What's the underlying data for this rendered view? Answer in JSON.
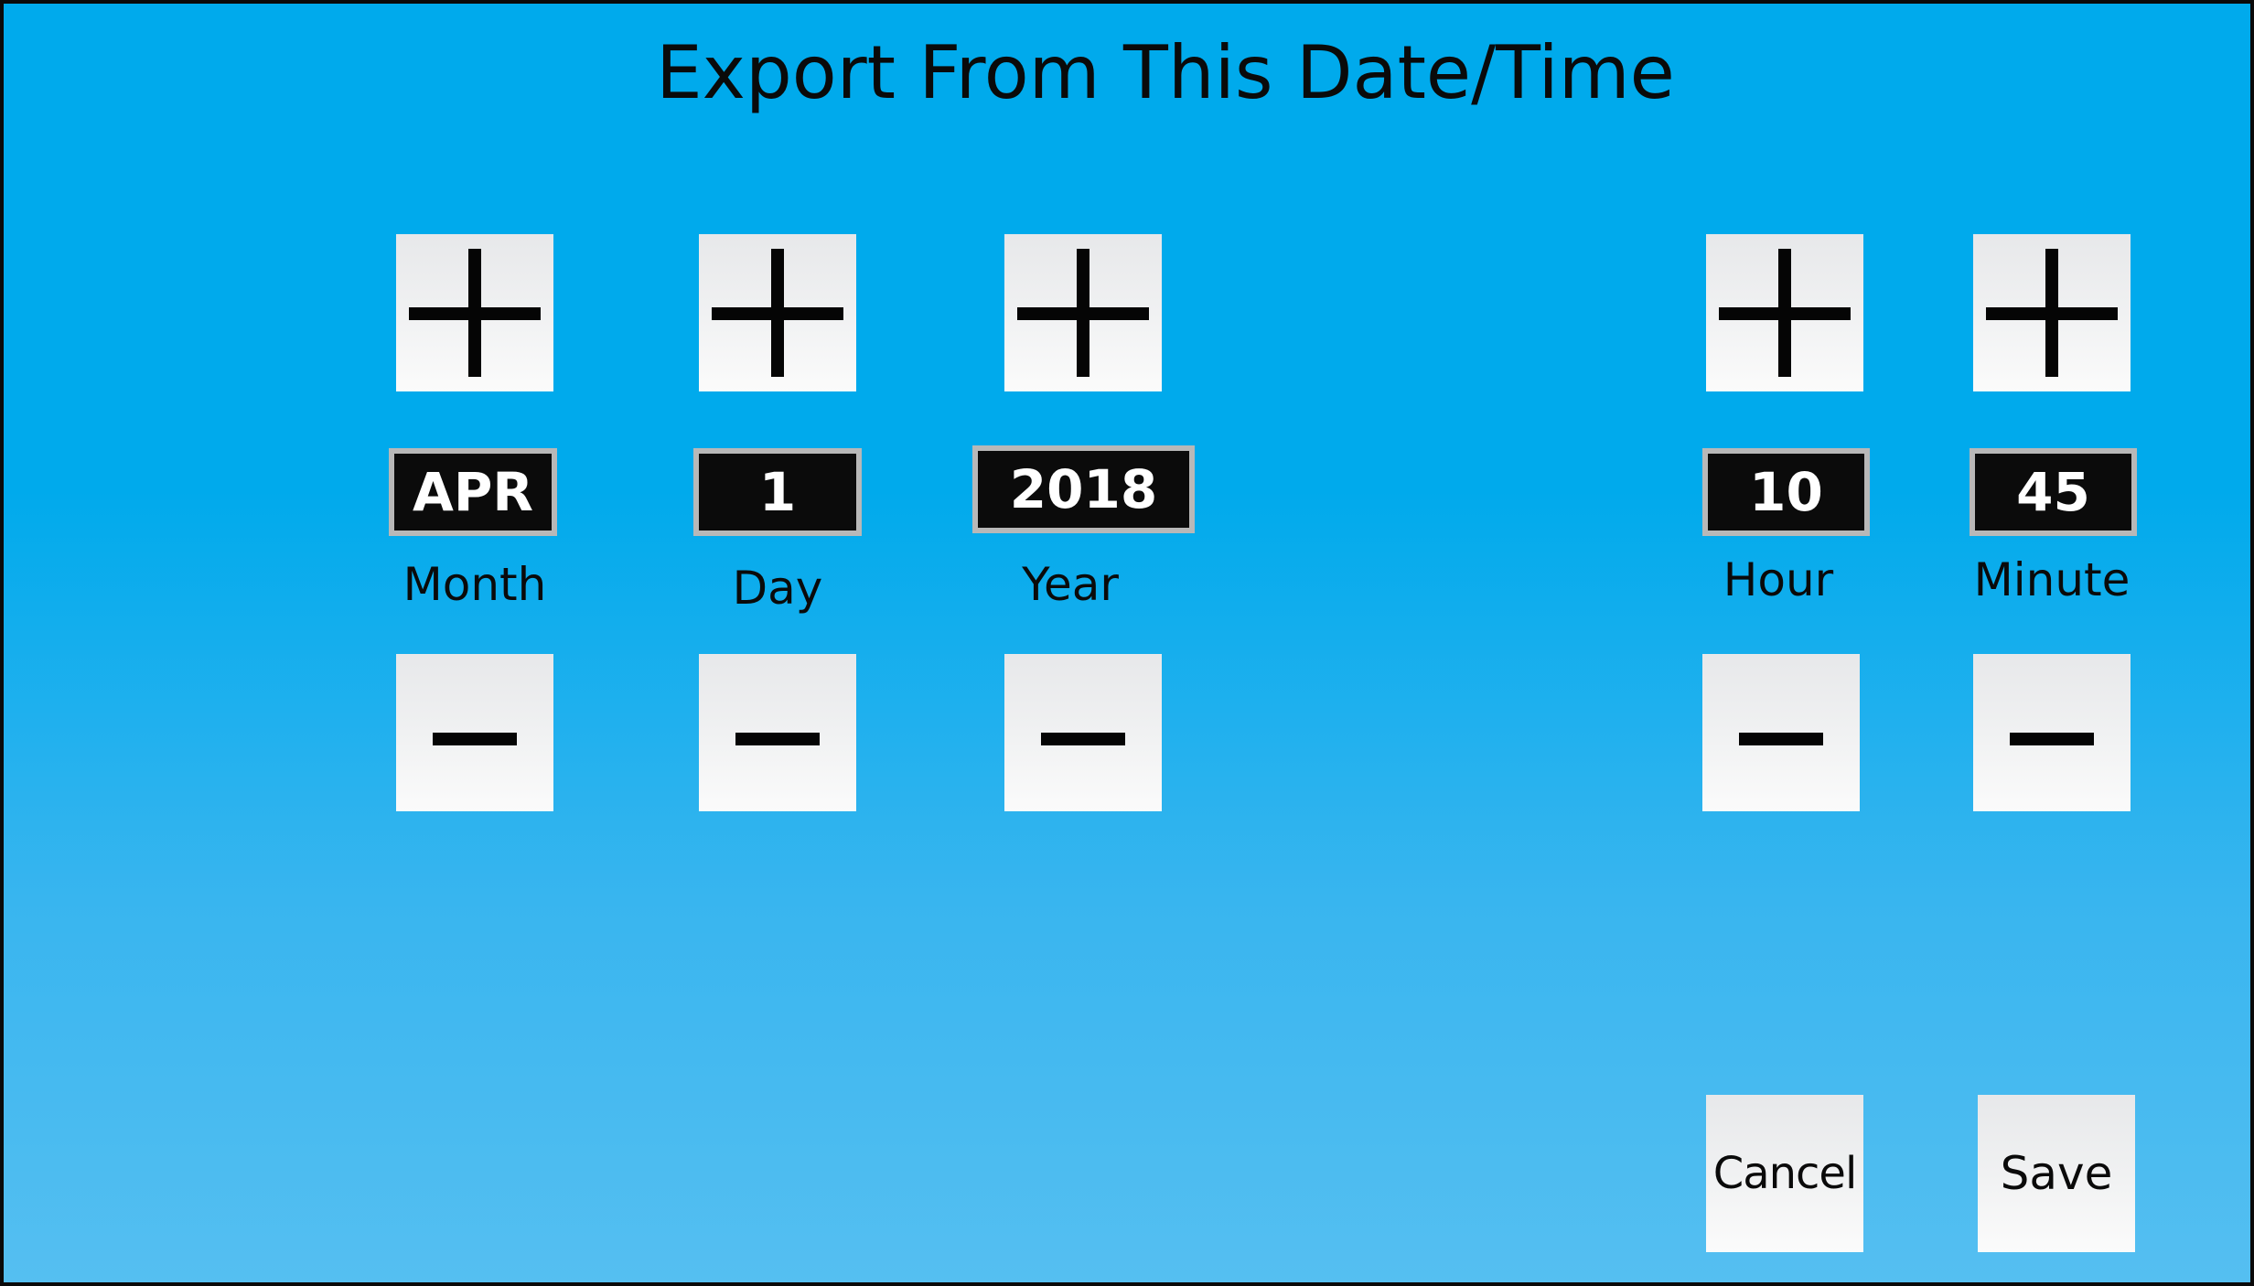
{
  "title": "Export From This Date/Time",
  "fields": {
    "month": {
      "value": "APR",
      "label": "Month"
    },
    "day": {
      "value": "1",
      "label": "Day"
    },
    "year": {
      "value": "2018",
      "label": "Year"
    },
    "hour": {
      "value": "10",
      "label": "Hour"
    },
    "minute": {
      "value": "45",
      "label": "Minute"
    }
  },
  "buttons": {
    "cancel": "Cancel",
    "save": "Save"
  },
  "colors": {
    "background_top": "#00aaec",
    "background_bottom": "#55bff1",
    "value_background": "#0b0b0b",
    "button_face": "#f0f1f2"
  },
  "icons": {
    "increment": "plus-icon",
    "decrement": "minus-icon"
  }
}
